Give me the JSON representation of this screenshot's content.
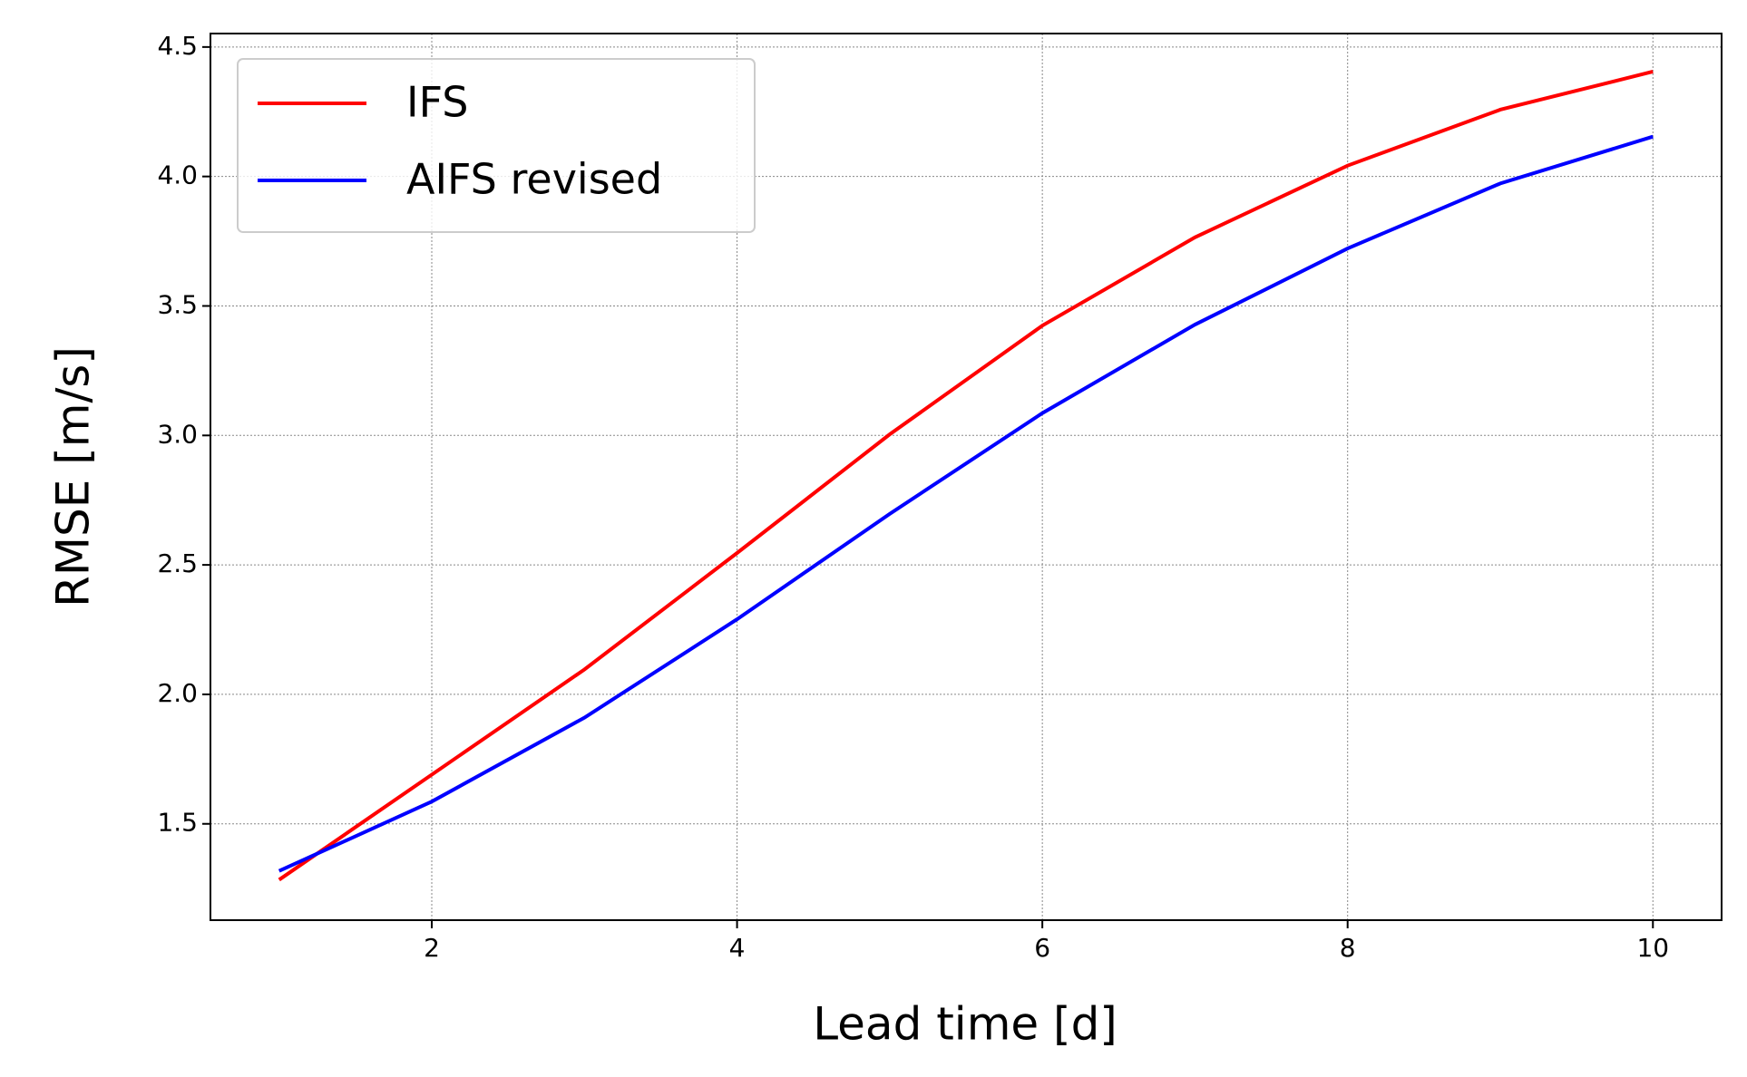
{
  "chart_data": {
    "type": "line",
    "x": [
      1,
      2,
      3,
      4,
      5,
      6,
      7,
      8,
      9,
      10
    ],
    "series": [
      {
        "name": "IFS",
        "color": "#ff0000",
        "values": [
          1.284,
          1.69,
          2.096,
          2.546,
          3.004,
          3.424,
          3.765,
          4.042,
          4.258,
          4.405
        ]
      },
      {
        "name": "AIFS revised",
        "color": "#0000ff",
        "values": [
          1.318,
          1.586,
          1.91,
          2.29,
          2.697,
          3.086,
          3.428,
          3.722,
          3.973,
          4.154
        ]
      }
    ],
    "xlabel": "Lead time [d]",
    "ylabel": "RMSE [m/s]",
    "xlim": [
      0.55,
      10.45
    ],
    "ylim": [
      1.128,
      4.552
    ],
    "xticks": [
      2,
      4,
      6,
      8,
      10
    ],
    "yticks": [
      1.5,
      {
        "value": 2,
        "label": "2.0"
      },
      2.5,
      {
        "value": 3,
        "label": "3.0"
      },
      3.5,
      {
        "value": 4,
        "label": "4.0"
      },
      4.5
    ],
    "grid": true,
    "legend": "upper left"
  }
}
